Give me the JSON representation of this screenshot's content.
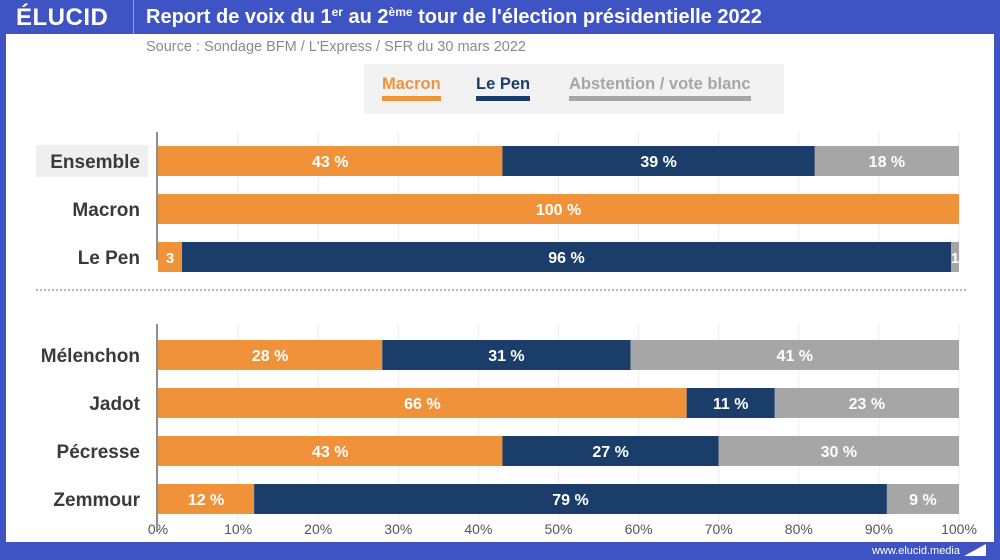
{
  "brand": {
    "logo": "ÉLUCID",
    "url": "www.elucid.media"
  },
  "header": {
    "title_part1": "Report de voix du 1",
    "title_sup1": "er",
    "title_part2": " au 2",
    "title_sup2": "ème",
    "title_part3": " tour de l'élection présidentielle 2022"
  },
  "source": "Source : Sondage BFM / L'Express / SFR du 30 mars 2022",
  "colors": {
    "macron": "#f0923a",
    "lepen": "#1b3d6a",
    "abstention": "#a6a6a6",
    "brand": "#3f54c4"
  },
  "legend": [
    {
      "label": "Macron",
      "color": "#f0923a"
    },
    {
      "label": "Le Pen",
      "color": "#1b3d6a"
    },
    {
      "label": "Abstention / vote blanc",
      "color": "#a6a6a6"
    }
  ],
  "chart_data": {
    "type": "bar",
    "orientation": "horizontal-stacked-100",
    "title": "Report de voix du 1er au 2ème tour de l'élection présidentielle 2022",
    "subtitle": "Source : Sondage BFM / L'Express / SFR du 30 mars 2022",
    "xlabel": "",
    "ylabel": "",
    "xlim": [
      0,
      100
    ],
    "x_ticks": [
      "0%",
      "10%",
      "20%",
      "30%",
      "40%",
      "50%",
      "60%",
      "70%",
      "80%",
      "90%",
      "100%"
    ],
    "grid": true,
    "legend_position": "top-center",
    "series_names": [
      "Macron",
      "Le Pen",
      "Abstention / vote blanc"
    ],
    "groups": [
      {
        "name": "first-round-voters",
        "categories": [
          "Ensemble",
          "Macron",
          "Le Pen"
        ],
        "highlighted_category": "Ensemble",
        "series": [
          {
            "name": "Macron",
            "values": [
              43,
              100,
              3
            ],
            "labels": [
              "43 %",
              "100 %",
              "3"
            ]
          },
          {
            "name": "Le Pen",
            "values": [
              39,
              0,
              96
            ],
            "labels": [
              "39 %",
              "",
              "96 %"
            ]
          },
          {
            "name": "Abstention / vote blanc",
            "values": [
              18,
              0,
              1
            ],
            "labels": [
              "18 %",
              "",
              "1"
            ]
          }
        ]
      },
      {
        "name": "other-candidates-voters",
        "categories": [
          "Mélenchon",
          "Jadot",
          "Pécresse",
          "Zemmour"
        ],
        "series": [
          {
            "name": "Macron",
            "values": [
              28,
              66,
              43,
              12
            ],
            "labels": [
              "28 %",
              "66 %",
              "43 %",
              "12 %"
            ]
          },
          {
            "name": "Le Pen",
            "values": [
              31,
              11,
              27,
              79
            ],
            "labels": [
              "31 %",
              "11 %",
              "27 %",
              "79 %"
            ]
          },
          {
            "name": "Abstention / vote blanc",
            "values": [
              41,
              23,
              30,
              9
            ],
            "labels": [
              "41 %",
              "23 %",
              "30 %",
              "9 %"
            ]
          }
        ]
      }
    ]
  }
}
